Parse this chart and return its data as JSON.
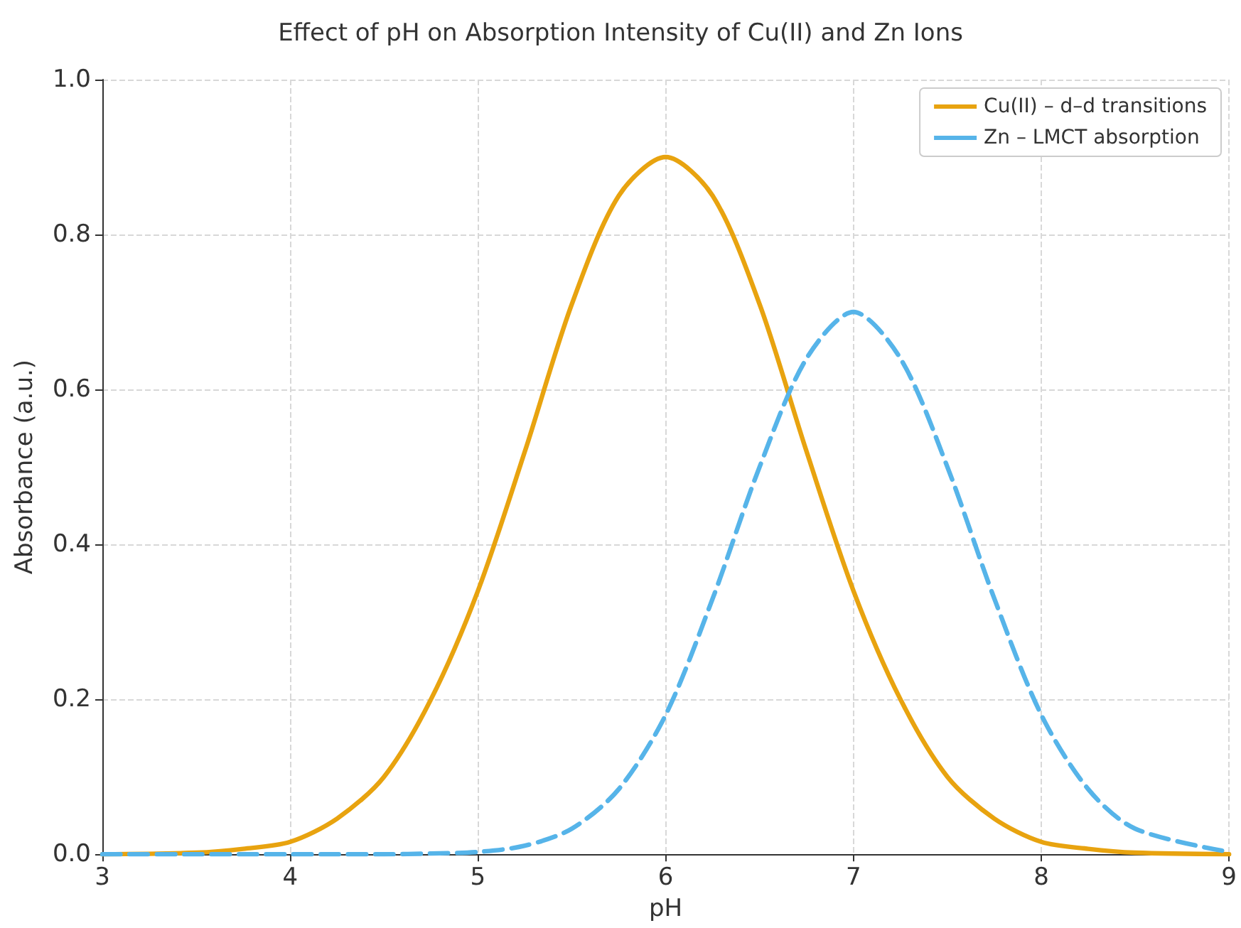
{
  "chart_data": {
    "type": "line",
    "title": "Effect of pH on Absorption Intensity of Cu(II) and Zn Ions",
    "xlabel": "pH",
    "ylabel": "Absorbance (a.u.)",
    "x": [
      3,
      3.5,
      3.75,
      4,
      4.25,
      4.5,
      4.75,
      5,
      5.25,
      5.5,
      5.75,
      6,
      6.25,
      6.5,
      6.75,
      7,
      7.25,
      7.5,
      7.75,
      8,
      8.25,
      8.5,
      9
    ],
    "series": [
      {
        "name": "Cu(II) – d–d transitions",
        "color": "#e8a30f",
        "line_style": "solid",
        "values": [
          0,
          0.002,
          0.007,
          0.016,
          0.046,
          0.1,
          0.2,
          0.34,
          0.52,
          0.71,
          0.85,
          0.9,
          0.85,
          0.71,
          0.52,
          0.34,
          0.2,
          0.1,
          0.046,
          0.016,
          0.007,
          0.002,
          0
        ]
      },
      {
        "name": "Zn – LMCT absorption",
        "color": "#56b4e9",
        "line_style": "dashed",
        "values": [
          0,
          0,
          0,
          0,
          0,
          0,
          0.001,
          0.003,
          0.011,
          0.033,
          0.084,
          0.18,
          0.33,
          0.5,
          0.64,
          0.7,
          0.64,
          0.5,
          0.33,
          0.18,
          0.084,
          0.033,
          0.003
        ]
      }
    ],
    "xlim": [
      3,
      9
    ],
    "xticks": [
      3,
      4,
      5,
      6,
      7,
      8,
      9
    ],
    "ylim": [
      0,
      1
    ],
    "yticks": [
      {
        "value": 0,
        "label": "0.0"
      },
      {
        "value": 0.2,
        "label": "0.2"
      },
      {
        "value": 0.4,
        "label": "0.4"
      },
      {
        "value": 0.6,
        "label": "0.6"
      },
      {
        "value": 0.8,
        "label": "0.8"
      },
      {
        "value": 1,
        "label": "1.0"
      }
    ],
    "grid": true,
    "legend": "top right",
    "marker": "none"
  }
}
